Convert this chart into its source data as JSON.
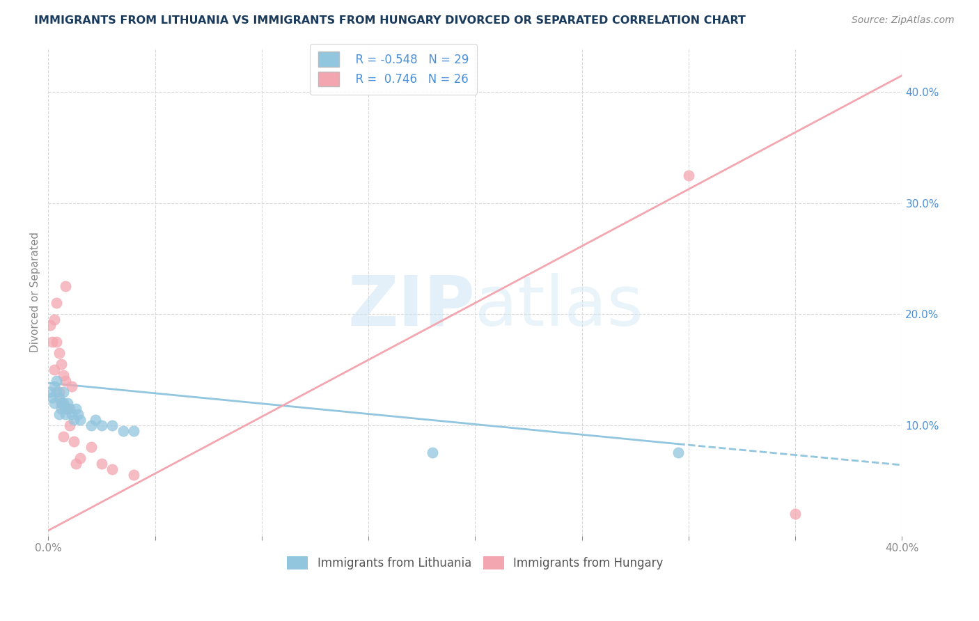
{
  "title": "IMMIGRANTS FROM LITHUANIA VS IMMIGRANTS FROM HUNGARY DIVORCED OR SEPARATED CORRELATION CHART",
  "source_text": "Source: ZipAtlas.com",
  "ylabel": "Divorced or Separated",
  "xlim": [
    0.0,
    0.4
  ],
  "ylim": [
    0.0,
    0.44
  ],
  "r_lithuania": -0.548,
  "n_lithuania": 29,
  "r_hungary": 0.746,
  "n_hungary": 26,
  "color_lithuania": "#92c5de",
  "color_hungary": "#f4a6b0",
  "trend_solid_lith_x0": 0.0,
  "trend_solid_lith_x1": 0.295,
  "trend_solid_lith_y0": 0.138,
  "trend_solid_lith_y1": 0.083,
  "trend_dash_lith_x0": 0.295,
  "trend_dash_lith_x1": 0.4,
  "trend_dash_lith_y0": 0.083,
  "trend_dash_lith_y1": 0.064,
  "trend_hung_x0": 0.0,
  "trend_hung_x1": 0.4,
  "trend_hung_y0": 0.005,
  "trend_hung_y1": 0.415,
  "scatter_lithuania": [
    [
      0.001,
      0.13
    ],
    [
      0.002,
      0.125
    ],
    [
      0.003,
      0.135
    ],
    [
      0.003,
      0.12
    ],
    [
      0.004,
      0.14
    ],
    [
      0.004,
      0.13
    ],
    [
      0.005,
      0.125
    ],
    [
      0.005,
      0.11
    ],
    [
      0.006,
      0.12
    ],
    [
      0.006,
      0.115
    ],
    [
      0.007,
      0.13
    ],
    [
      0.007,
      0.12
    ],
    [
      0.008,
      0.115
    ],
    [
      0.008,
      0.11
    ],
    [
      0.009,
      0.12
    ],
    [
      0.01,
      0.115
    ],
    [
      0.011,
      0.11
    ],
    [
      0.012,
      0.105
    ],
    [
      0.013,
      0.115
    ],
    [
      0.014,
      0.11
    ],
    [
      0.015,
      0.105
    ],
    [
      0.02,
      0.1
    ],
    [
      0.022,
      0.105
    ],
    [
      0.025,
      0.1
    ],
    [
      0.03,
      0.1
    ],
    [
      0.035,
      0.095
    ],
    [
      0.04,
      0.095
    ],
    [
      0.18,
      0.075
    ],
    [
      0.295,
      0.075
    ]
  ],
  "scatter_hungary": [
    [
      0.001,
      0.19
    ],
    [
      0.002,
      0.175
    ],
    [
      0.003,
      0.195
    ],
    [
      0.003,
      0.15
    ],
    [
      0.004,
      0.21
    ],
    [
      0.004,
      0.175
    ],
    [
      0.005,
      0.165
    ],
    [
      0.005,
      0.13
    ],
    [
      0.006,
      0.155
    ],
    [
      0.006,
      0.12
    ],
    [
      0.007,
      0.145
    ],
    [
      0.007,
      0.09
    ],
    [
      0.008,
      0.225
    ],
    [
      0.008,
      0.14
    ],
    [
      0.009,
      0.115
    ],
    [
      0.01,
      0.1
    ],
    [
      0.011,
      0.135
    ],
    [
      0.012,
      0.085
    ],
    [
      0.013,
      0.065
    ],
    [
      0.015,
      0.07
    ],
    [
      0.02,
      0.08
    ],
    [
      0.025,
      0.065
    ],
    [
      0.03,
      0.06
    ],
    [
      0.04,
      0.055
    ],
    [
      0.3,
      0.325
    ],
    [
      0.35,
      0.02
    ]
  ],
  "watermark_zip": "ZIP",
  "watermark_atlas": "atlas",
  "background_color": "#ffffff",
  "grid_color": "#d8d8d8",
  "title_color": "#1a3a5c",
  "axis_label_color": "#4a90d9",
  "tick_color": "#888888",
  "legend_text_color": "#4a90d9"
}
